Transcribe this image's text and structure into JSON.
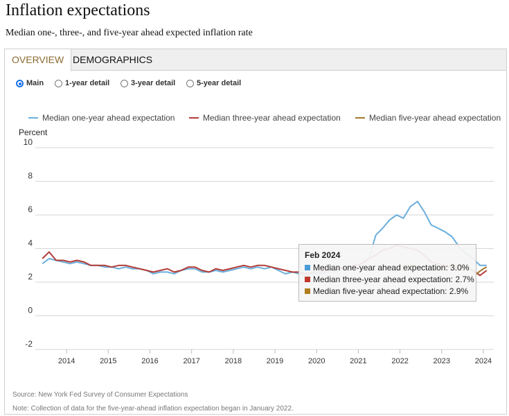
{
  "header": {
    "title": "Inflation expectations",
    "subtitle": "Median one-, three-, and five-year ahead expected inflation rate"
  },
  "tabs": [
    {
      "label": "OVERVIEW",
      "active": true
    },
    {
      "label": "DEMOGRAPHICS",
      "active": false
    }
  ],
  "radios": [
    {
      "label": "Main",
      "checked": true
    },
    {
      "label": "1-year detail",
      "checked": false
    },
    {
      "label": "3-year detail",
      "checked": false
    },
    {
      "label": "5-year detail",
      "checked": false
    }
  ],
  "colors": {
    "one_year": "#6aaedc",
    "three_year": "#b23b37",
    "five_year": "#a0782f",
    "tooltip_one": "#4a9bd6",
    "tooltip_three": "#c0392b",
    "tooltip_five": "#b07d1e"
  },
  "tooltip": {
    "title": "Feb 2024",
    "rows": [
      "Median one-year ahead expectation: 3.0%",
      "Median three-year ahead expectation: 2.7%",
      "Median five-year ahead expectation: 2.9%"
    ]
  },
  "footer": {
    "source": "Source: New York Fed Survey of Consumer Expectations",
    "note": "Note: Collection of data for the five-year-ahead inflation expectation began in January 2022."
  },
  "chart_data": {
    "type": "line",
    "title": "Inflation expectations",
    "ylabel": "Percent",
    "xlabel": "",
    "ylim": [
      -2,
      10
    ],
    "yticks": [
      "10",
      "8",
      "6",
      "4",
      "2",
      "0",
      "-2"
    ],
    "xticks": [
      "2014",
      "2015",
      "2016",
      "2017",
      "2018",
      "2019",
      "2020",
      "2021",
      "2022",
      "2023",
      "2024"
    ],
    "grid": true,
    "legend": [
      "Median one-year ahead expectation",
      "Median three-year ahead expectation",
      "Median five-year ahead expectation"
    ],
    "series": [
      {
        "name": "Median one-year ahead expectation",
        "x": [
          2013.42,
          2013.58,
          2013.75,
          2013.92,
          2014.08,
          2014.25,
          2014.42,
          2014.58,
          2014.75,
          2014.92,
          2015.08,
          2015.25,
          2015.42,
          2015.58,
          2015.75,
          2015.92,
          2016.08,
          2016.25,
          2016.42,
          2016.58,
          2016.75,
          2016.92,
          2017.08,
          2017.25,
          2017.42,
          2017.58,
          2017.75,
          2017.92,
          2018.08,
          2018.25,
          2018.42,
          2018.58,
          2018.75,
          2018.92,
          2019.08,
          2019.25,
          2019.42,
          2019.58,
          2019.75,
          2019.92,
          2020.08,
          2020.25,
          2020.42,
          2020.58,
          2020.75,
          2020.92,
          2021.08,
          2021.25,
          2021.42,
          2021.58,
          2021.75,
          2021.92,
          2022.08,
          2022.25,
          2022.42,
          2022.58,
          2022.75,
          2022.92,
          2023.08,
          2023.25,
          2023.42,
          2023.58,
          2023.75,
          2023.92,
          2024.08
        ],
        "y": [
          3.1,
          3.4,
          3.3,
          3.2,
          3.1,
          3.2,
          3.1,
          3.0,
          3.0,
          2.9,
          2.9,
          2.8,
          2.9,
          2.8,
          2.8,
          2.7,
          2.5,
          2.6,
          2.6,
          2.5,
          2.7,
          2.8,
          2.8,
          2.6,
          2.6,
          2.7,
          2.6,
          2.7,
          2.8,
          2.9,
          2.8,
          2.9,
          2.8,
          2.9,
          2.7,
          2.5,
          2.6,
          2.5,
          2.4,
          2.5,
          2.5,
          2.6,
          2.6,
          2.8,
          2.9,
          3.0,
          3.1,
          3.4,
          4.8,
          5.2,
          5.7,
          6.0,
          5.8,
          6.5,
          6.8,
          6.2,
          5.4,
          5.2,
          5.0,
          4.7,
          4.1,
          3.7,
          3.4,
          3.0,
          3.0
        ]
      },
      {
        "name": "Median three-year ahead expectation",
        "x": [
          2013.42,
          2013.58,
          2013.75,
          2013.92,
          2014.08,
          2014.25,
          2014.42,
          2014.58,
          2014.75,
          2014.92,
          2015.08,
          2015.25,
          2015.42,
          2015.58,
          2015.75,
          2015.92,
          2016.08,
          2016.25,
          2016.42,
          2016.58,
          2016.75,
          2016.92,
          2017.08,
          2017.25,
          2017.42,
          2017.58,
          2017.75,
          2017.92,
          2018.08,
          2018.25,
          2018.42,
          2018.58,
          2018.75,
          2018.92,
          2019.08,
          2019.25,
          2019.42,
          2019.58,
          2019.75,
          2019.92,
          2020.08,
          2020.25,
          2020.42,
          2020.58,
          2020.75,
          2020.92,
          2021.08,
          2021.25,
          2021.42,
          2021.58,
          2021.75,
          2021.92,
          2022.08,
          2022.25,
          2022.42,
          2022.58,
          2022.75,
          2022.92,
          2023.08,
          2023.25,
          2023.42,
          2023.58,
          2023.75,
          2023.92,
          2024.08
        ],
        "y": [
          3.4,
          3.8,
          3.3,
          3.3,
          3.2,
          3.3,
          3.2,
          3.0,
          3.0,
          3.0,
          2.9,
          3.0,
          3.0,
          2.9,
          2.8,
          2.7,
          2.6,
          2.7,
          2.8,
          2.6,
          2.7,
          2.9,
          2.9,
          2.7,
          2.6,
          2.8,
          2.7,
          2.8,
          2.9,
          3.0,
          2.9,
          3.0,
          3.0,
          2.9,
          2.8,
          2.7,
          2.6,
          2.6,
          2.5,
          2.6,
          2.6,
          2.7,
          2.8,
          2.8,
          2.9,
          3.0,
          3.1,
          3.4,
          3.6,
          3.9,
          4.0,
          4.2,
          4.1,
          4.0,
          3.9,
          3.6,
          3.2,
          3.1,
          3.0,
          2.9,
          2.8,
          2.9,
          2.7,
          2.4,
          2.7
        ]
      },
      {
        "name": "Median five-year ahead expectation",
        "x": [
          2022.0,
          2022.17,
          2022.33,
          2022.5,
          2022.67,
          2022.83,
          2023.0,
          2023.17,
          2023.33,
          2023.5,
          2023.67,
          2023.83,
          2024.0,
          2024.08
        ],
        "y": [
          2.9,
          3.0,
          3.0,
          2.9,
          2.8,
          3.0,
          2.9,
          2.9,
          3.0,
          2.9,
          2.8,
          2.5,
          2.8,
          2.9
        ]
      }
    ]
  }
}
